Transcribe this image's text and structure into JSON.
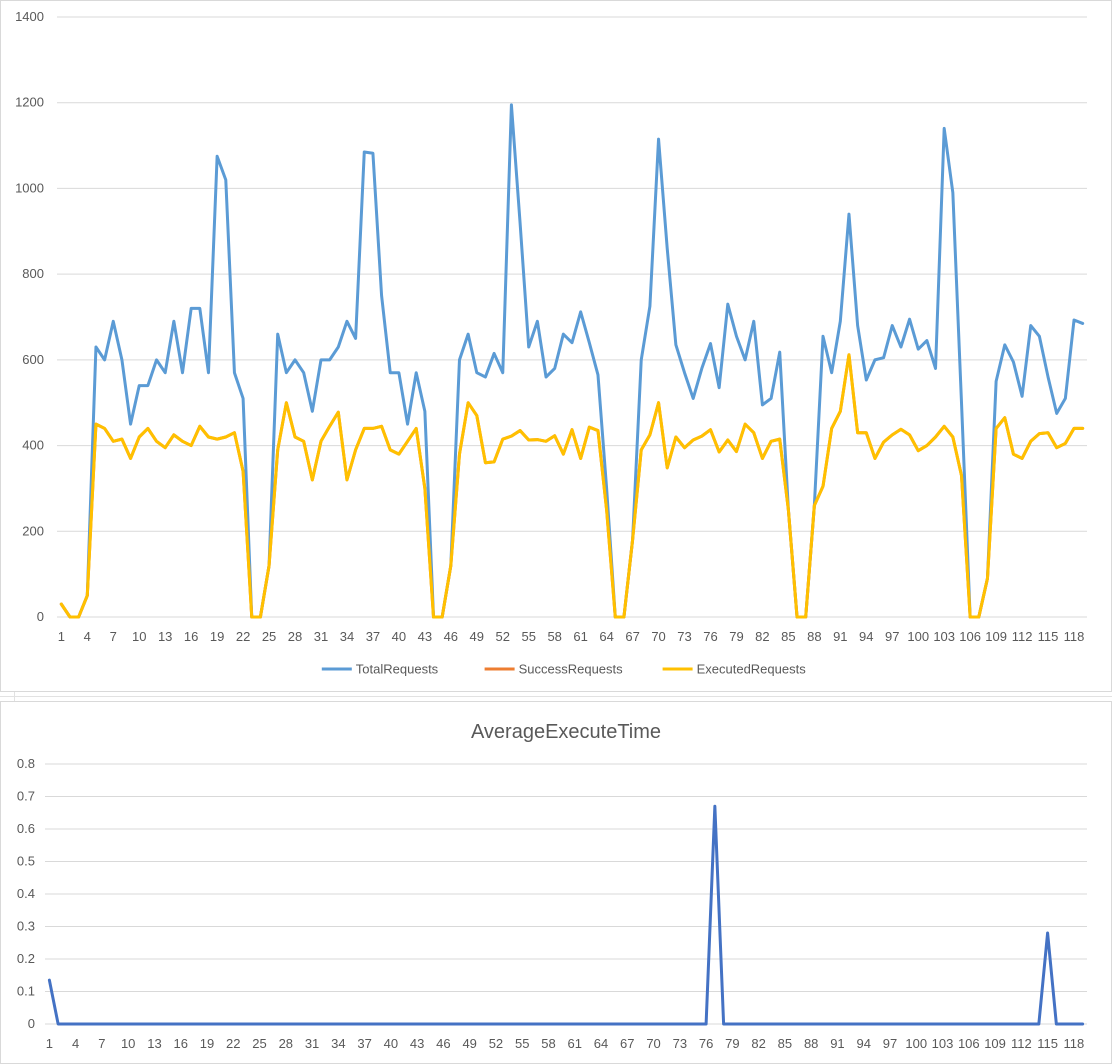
{
  "chart_data": [
    {
      "type": "line",
      "title": "",
      "xlabel": "",
      "ylabel": "",
      "ylim": [
        0,
        1400
      ],
      "yticks": [
        0,
        200,
        400,
        600,
        800,
        1000,
        1200,
        1400
      ],
      "x_start": 1,
      "x_end": 119,
      "x_tick_step": 3,
      "grid": true,
      "legend_position": "bottom",
      "series": [
        {
          "name": "TotalRequests",
          "color": "#5b9bd5",
          "values": [
            30,
            0,
            0,
            50,
            630,
            600,
            690,
            600,
            450,
            540,
            540,
            600,
            570,
            690,
            570,
            720,
            720,
            570,
            1075,
            1020,
            570,
            510,
            0,
            0,
            120,
            660,
            570,
            600,
            570,
            480,
            600,
            600,
            630,
            690,
            650,
            1085,
            1082,
            750,
            570,
            570,
            450,
            570,
            480,
            0,
            0,
            120,
            600,
            660,
            570,
            560,
            615,
            570,
            1195,
            920,
            630,
            690,
            560,
            580,
            660,
            640,
            712,
            640,
            565,
            300,
            0,
            0,
            180,
            600,
            725,
            1115,
            860,
            635,
            570,
            510,
            580,
            638,
            535,
            730,
            655,
            600,
            690,
            495,
            510,
            618,
            250,
            0,
            0,
            260,
            655,
            570,
            690,
            940,
            680,
            553,
            600,
            605,
            680,
            630,
            695,
            625,
            645,
            580,
            1140,
            990,
            500,
            0,
            0,
            90,
            550,
            635,
            595,
            515,
            680,
            655,
            560,
            475,
            510,
            693,
            685
          ]
        },
        {
          "name": "SuccessRequests",
          "color": "#ed7d31",
          "values": [
            30,
            0,
            0,
            50,
            450,
            440,
            410,
            415,
            370,
            420,
            440,
            410,
            395,
            425,
            410,
            400,
            445,
            420,
            415,
            420,
            430,
            340,
            0,
            0,
            120,
            390,
            500,
            420,
            410,
            320,
            410,
            445,
            478,
            320,
            390,
            440,
            440,
            445,
            390,
            380,
            410,
            440,
            300,
            0,
            0,
            120,
            380,
            500,
            470,
            360,
            362,
            415,
            422,
            435,
            413,
            414,
            410,
            423,
            380,
            437,
            370,
            443,
            435,
            250,
            0,
            0,
            180,
            390,
            425,
            500,
            348,
            420,
            395,
            413,
            422,
            437,
            385,
            413,
            386,
            450,
            430,
            370,
            410,
            415,
            250,
            0,
            0,
            260,
            305,
            440,
            480,
            612,
            430,
            430,
            370,
            408,
            425,
            438,
            425,
            388,
            400,
            420,
            445,
            420,
            330,
            0,
            0,
            90,
            440,
            465,
            380,
            370,
            410,
            428,
            430,
            395,
            405,
            440,
            440
          ]
        },
        {
          "name": "ExecutedRequests",
          "color": "#ffc000",
          "values": [
            30,
            0,
            0,
            50,
            450,
            440,
            410,
            415,
            370,
            420,
            440,
            410,
            395,
            425,
            410,
            400,
            445,
            420,
            415,
            420,
            430,
            340,
            0,
            0,
            120,
            390,
            500,
            420,
            410,
            320,
            410,
            445,
            478,
            320,
            390,
            440,
            440,
            445,
            390,
            380,
            410,
            440,
            300,
            0,
            0,
            120,
            380,
            500,
            470,
            360,
            362,
            415,
            422,
            435,
            413,
            414,
            410,
            423,
            380,
            437,
            370,
            443,
            435,
            250,
            0,
            0,
            180,
            390,
            425,
            500,
            348,
            420,
            395,
            413,
            422,
            437,
            385,
            413,
            386,
            450,
            430,
            370,
            410,
            415,
            250,
            0,
            0,
            260,
            305,
            440,
            480,
            612,
            430,
            430,
            370,
            408,
            425,
            438,
            425,
            388,
            400,
            420,
            445,
            420,
            330,
            0,
            0,
            90,
            440,
            465,
            380,
            370,
            410,
            428,
            430,
            395,
            405,
            440,
            440
          ]
        }
      ]
    },
    {
      "type": "line",
      "title": "AverageExecuteTime",
      "xlabel": "",
      "ylabel": "",
      "ylim": [
        0,
        0.8
      ],
      "yticks": [
        0,
        0.1,
        0.2,
        0.3,
        0.4,
        0.5,
        0.6,
        0.7,
        0.8
      ],
      "x_start": 1,
      "x_end": 119,
      "x_tick_step": 3,
      "grid": true,
      "legend_position": "none",
      "series": [
        {
          "name": "",
          "color": "#4472c4",
          "values": [
            0.135,
            0,
            0,
            0,
            0,
            0,
            0,
            0,
            0,
            0,
            0,
            0,
            0,
            0,
            0,
            0,
            0,
            0,
            0,
            0,
            0,
            0,
            0,
            0,
            0,
            0,
            0,
            0,
            0,
            0,
            0,
            0,
            0,
            0,
            0,
            0,
            0,
            0,
            0,
            0,
            0,
            0,
            0,
            0,
            0,
            0,
            0,
            0,
            0,
            0,
            0,
            0,
            0,
            0,
            0,
            0,
            0,
            0,
            0,
            0,
            0,
            0,
            0,
            0,
            0,
            0,
            0,
            0,
            0,
            0,
            0,
            0,
            0,
            0,
            0,
            0,
            0.67,
            0,
            0,
            0,
            0,
            0,
            0,
            0,
            0,
            0,
            0,
            0,
            0,
            0,
            0,
            0,
            0,
            0,
            0,
            0,
            0,
            0,
            0,
            0,
            0,
            0,
            0,
            0,
            0,
            0,
            0,
            0,
            0,
            0,
            0,
            0,
            0,
            0,
            0.28,
            0,
            0,
            0,
            0
          ]
        }
      ]
    }
  ],
  "colors": {
    "gridline": "#d9d9d9",
    "axis_text": "#595959"
  }
}
